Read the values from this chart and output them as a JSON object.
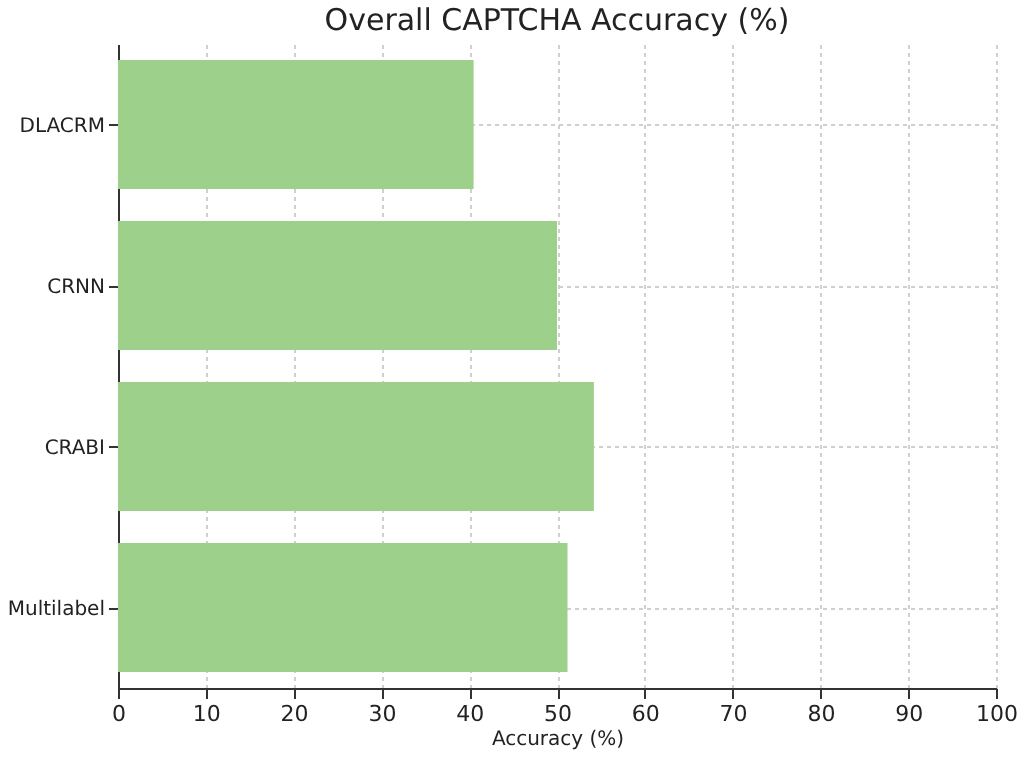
{
  "chart_data": {
    "type": "bar",
    "orientation": "horizontal",
    "title": "Overall CAPTCHA Accuracy (%)",
    "xlabel": "Accuracy (%)",
    "categories": [
      "DLACRM",
      "CRNN",
      "CRABI",
      "Multilabel"
    ],
    "values": [
      40.5,
      50,
      54.2,
      51.2
    ],
    "color": "#9dd08a",
    "xlim": [
      0,
      100
    ],
    "xticks": [
      0,
      10,
      20,
      30,
      40,
      50,
      60,
      70,
      80,
      90,
      100
    ],
    "grid": true
  }
}
